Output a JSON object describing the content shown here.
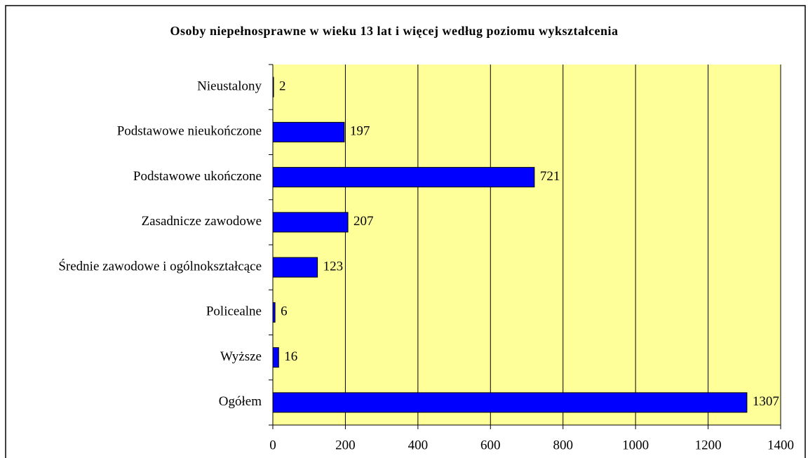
{
  "chart_data": {
    "type": "barh",
    "title": "Osoby niepełnosprawne w wieku 13 lat i więcej według poziomu wykształcenia",
    "categories": [
      "Nieustalony",
      "Podstawowe nieukończone",
      "Podstawowe ukończone",
      "Zasadnicze zawodowe",
      "Średnie zawodowe i ogólnokształcące",
      "Policealne",
      "Wyższe",
      "Ogółem"
    ],
    "values": [
      2,
      197,
      721,
      207,
      123,
      6,
      16,
      1307
    ],
    "color": "#0000ff",
    "xlim": [
      0,
      1400
    ],
    "xticks": [
      0,
      200,
      400,
      600,
      800,
      1000,
      1200,
      1400
    ],
    "grid": true
  }
}
